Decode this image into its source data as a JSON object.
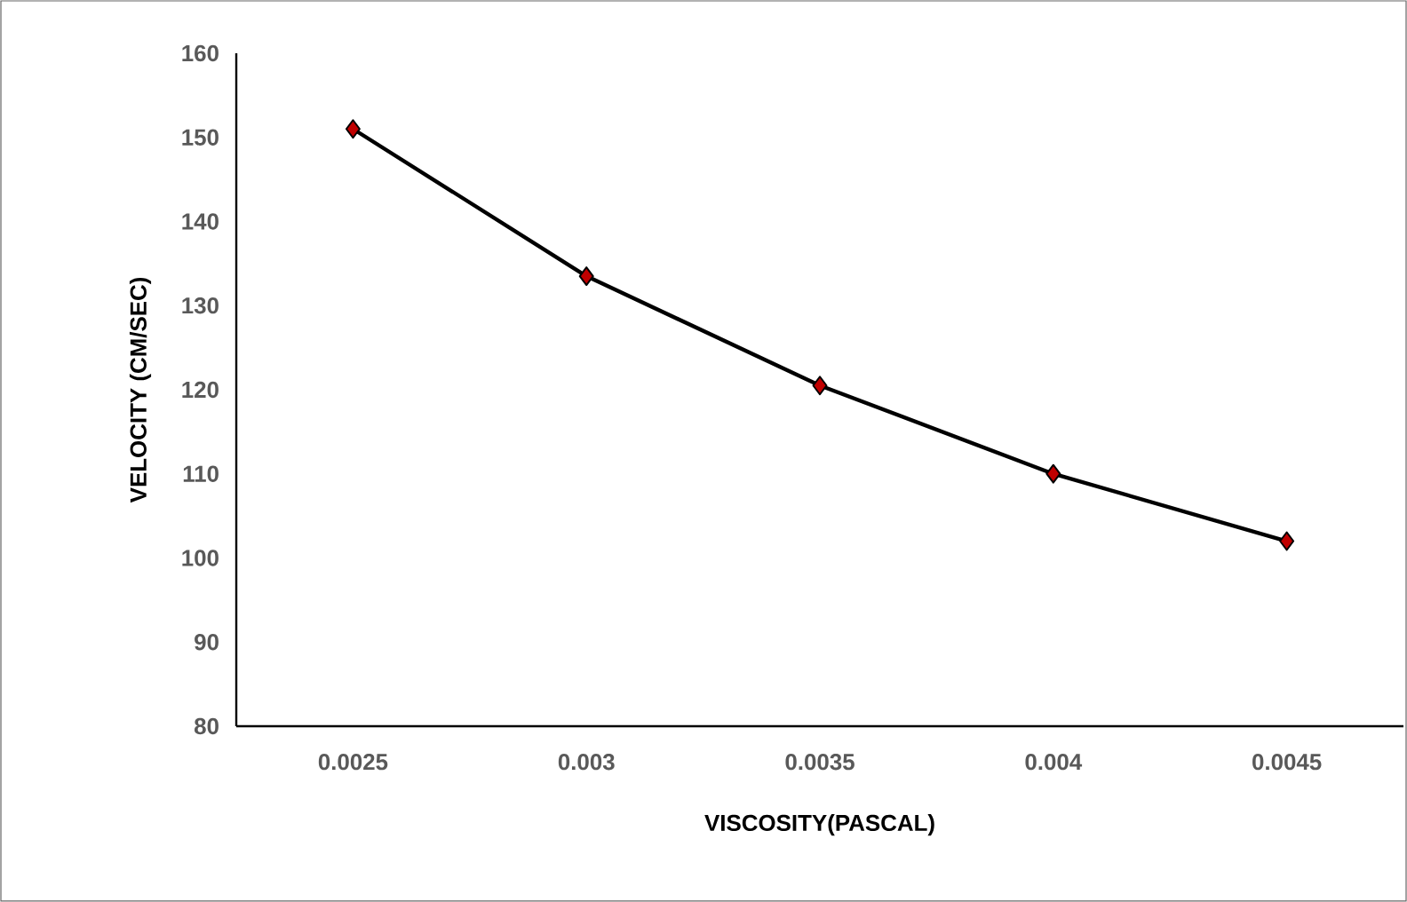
{
  "chart_data": {
    "type": "line",
    "xlabel": "VISCOSITY(PASCAL)",
    "ylabel": "VELOCITY (CM/SEC)",
    "categories": [
      "0.0025",
      "0.003",
      "0.0035",
      "0.004",
      "0.0045"
    ],
    "series": [
      {
        "color": "#000000",
        "values": [
          151,
          133.5,
          120.5,
          110,
          102
        ]
      }
    ],
    "ylim": [
      80,
      160
    ],
    "yticks": [
      80,
      90,
      100,
      110,
      120,
      130,
      140,
      150,
      160
    ],
    "marker": "diamond",
    "line_style": "solid",
    "grid": false
  }
}
